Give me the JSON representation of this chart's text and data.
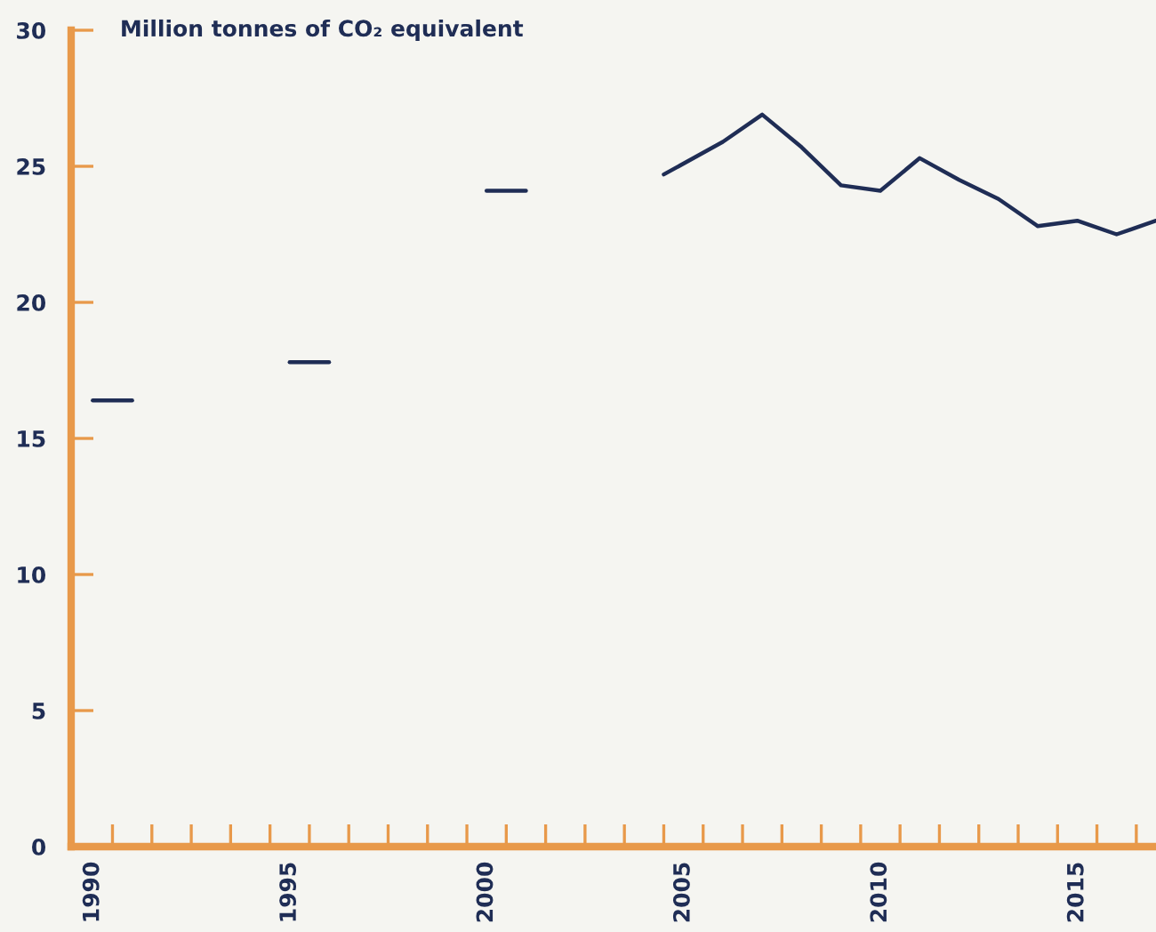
{
  "chart_data": {
    "type": "line",
    "title": "Million tonnes of CO₂ equivalent",
    "series": [
      {
        "color": "#1f2d55",
        "x": [
          1990,
          1991
        ],
        "values": [
          16.4,
          16.4
        ]
      },
      {
        "color": "#1f2d55",
        "x": [
          1995,
          1996
        ],
        "values": [
          17.8,
          17.8
        ]
      },
      {
        "color": "#1f2d55",
        "x": [
          2000,
          2001
        ],
        "values": [
          24.1,
          24.1
        ]
      },
      {
        "color": "#1f2d55",
        "x": [
          2004.5,
          2006,
          2007,
          2008,
          2009,
          2010,
          2011,
          2012,
          2013,
          2014,
          2015,
          2016,
          2017
        ],
        "values": [
          24.7,
          25.9,
          26.9,
          25.7,
          24.3,
          24.1,
          25.3,
          24.5,
          23.8,
          22.8,
          23.0,
          22.5,
          23.0
        ]
      }
    ],
    "xlim": [
      1989.45,
      2017
    ],
    "xticks": [
      {
        "value": 1990,
        "label": "1990"
      },
      {
        "value": 1990.5,
        "label": null
      },
      {
        "value": 1991.5,
        "label": null
      },
      {
        "value": 1992.5,
        "label": null
      },
      {
        "value": 1993.5,
        "label": null
      },
      {
        "value": 1994.5,
        "label": null
      },
      {
        "value": 1995,
        "label": "1995"
      },
      {
        "value": 1995.5,
        "label": null
      },
      {
        "value": 1996.5,
        "label": null
      },
      {
        "value": 1997.5,
        "label": null
      },
      {
        "value": 1998.5,
        "label": null
      },
      {
        "value": 1999.5,
        "label": null
      },
      {
        "value": 2000,
        "label": "2000"
      },
      {
        "value": 2000.5,
        "label": null
      },
      {
        "value": 2001.5,
        "label": null
      },
      {
        "value": 2002.5,
        "label": null
      },
      {
        "value": 2003.5,
        "label": null
      },
      {
        "value": 2004.5,
        "label": null
      },
      {
        "value": 2005,
        "label": "2005"
      },
      {
        "value": 2005.5,
        "label": null
      },
      {
        "value": 2006.5,
        "label": null
      },
      {
        "value": 2007.5,
        "label": null
      },
      {
        "value": 2008.5,
        "label": null
      },
      {
        "value": 2009.5,
        "label": null
      },
      {
        "value": 2010,
        "label": "2010"
      },
      {
        "value": 2010.5,
        "label": null
      },
      {
        "value": 2011.5,
        "label": null
      },
      {
        "value": 2012.5,
        "label": null
      },
      {
        "value": 2013.5,
        "label": null
      },
      {
        "value": 2014.5,
        "label": null
      },
      {
        "value": 2015,
        "label": "2015"
      },
      {
        "value": 2015.5,
        "label": null
      },
      {
        "value": 2016.5,
        "label": null
      }
    ],
    "ylim": [
      0,
      30
    ],
    "yticks": [
      0,
      5,
      10,
      15,
      20,
      25,
      30
    ],
    "grid": false,
    "marker": "none",
    "line_style": "solid"
  }
}
